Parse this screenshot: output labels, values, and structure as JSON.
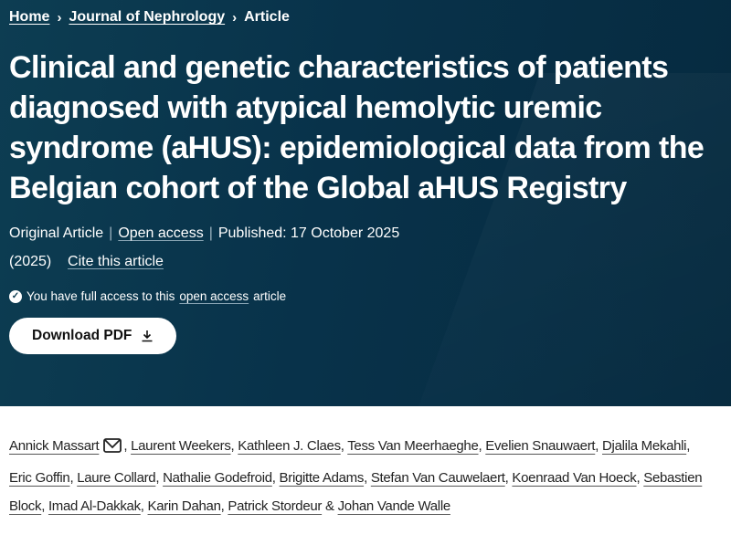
{
  "breadcrumb": [
    "Home",
    "Journal of Nephrology",
    "Article"
  ],
  "title": "Clinical and genetic characteristics of patients diagnosed with atypical hemolytic uremic syndrome (aHUS): epidemiological data from the Belgian cohort of the Global aHUS Registry",
  "meta": {
    "type": "Original Article",
    "access": "Open access",
    "published": "Published: 17 October 2025",
    "year": "(2025)",
    "cite": "Cite this article"
  },
  "access_notice": {
    "prefix": "You have full access to this",
    "link": "open access",
    "suffix": "article"
  },
  "download_label": "Download PDF",
  "authors": [
    "Annick Massart",
    "Laurent Weekers",
    "Kathleen J. Claes",
    "Tess Van Meerhaeghe",
    "Evelien Snauwaert",
    "Djalila Mekahli",
    "Eric Goffin",
    "Laure Collard",
    "Nathalie Godefroid",
    "Brigitte Adams",
    "Stefan Van Cauwelaert",
    "Koenraad Van Hoeck",
    "Sebastien Block",
    "Imad Al-Dakkak",
    "Karin Dahan",
    "Patrick Stordeur",
    "Johan Vande Walle"
  ],
  "colors": {
    "hero_bg": "#08324a",
    "text_on_hero": "#ffffff"
  }
}
